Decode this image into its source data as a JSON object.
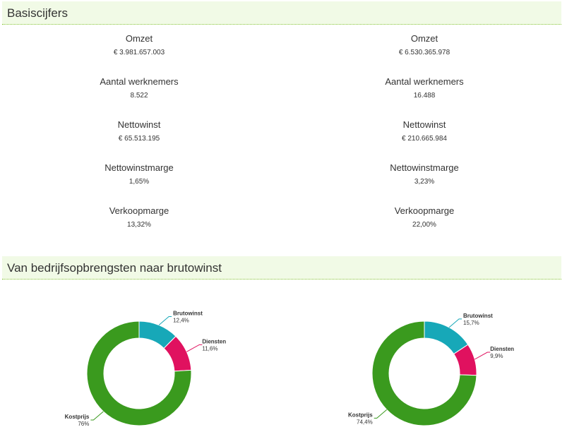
{
  "basiscijfers": {
    "title": "Basiscijfers",
    "left": [
      {
        "label": "Omzet",
        "value": "€ 3.981.657.003"
      },
      {
        "label": "Aantal werknemers",
        "value": "8.522"
      },
      {
        "label": "Nettowinst",
        "value": "€ 65.513.195"
      },
      {
        "label": "Nettowinstmarge",
        "value": "1,65%"
      },
      {
        "label": "Verkoopmarge",
        "value": "13,32%"
      }
    ],
    "right": [
      {
        "label": "Omzet",
        "value": "€ 6.530.365.978"
      },
      {
        "label": "Aantal werknemers",
        "value": "16.488"
      },
      {
        "label": "Nettowinst",
        "value": "€ 210.665.984"
      },
      {
        "label": "Nettowinstmarge",
        "value": "3,23%"
      },
      {
        "label": "Verkoopmarge",
        "value": "22,00%"
      }
    ]
  },
  "brutowinst_section": {
    "title": "Van bedrijfsopbrengsten naar brutowinst"
  },
  "colors": {
    "brutowinst": "#17a8b8",
    "diensten": "#e0115f",
    "kostprijs": "#3a9a1e",
    "header_bg": "#f1fae6",
    "header_border": "#8cc63f"
  },
  "chart_data": [
    {
      "type": "pie",
      "categories": [
        "Brutowinst",
        "Diensten",
        "Kostprijs"
      ],
      "values": [
        12.4,
        11.6,
        76
      ],
      "labels": [
        "12,4%",
        "11,6%",
        "76%"
      ]
    },
    {
      "type": "pie",
      "categories": [
        "Brutowinst",
        "Diensten",
        "Kostprijs"
      ],
      "values": [
        15.7,
        9.9,
        74.4
      ],
      "labels": [
        "15,7%",
        "9,9%",
        "74,4%"
      ]
    }
  ]
}
